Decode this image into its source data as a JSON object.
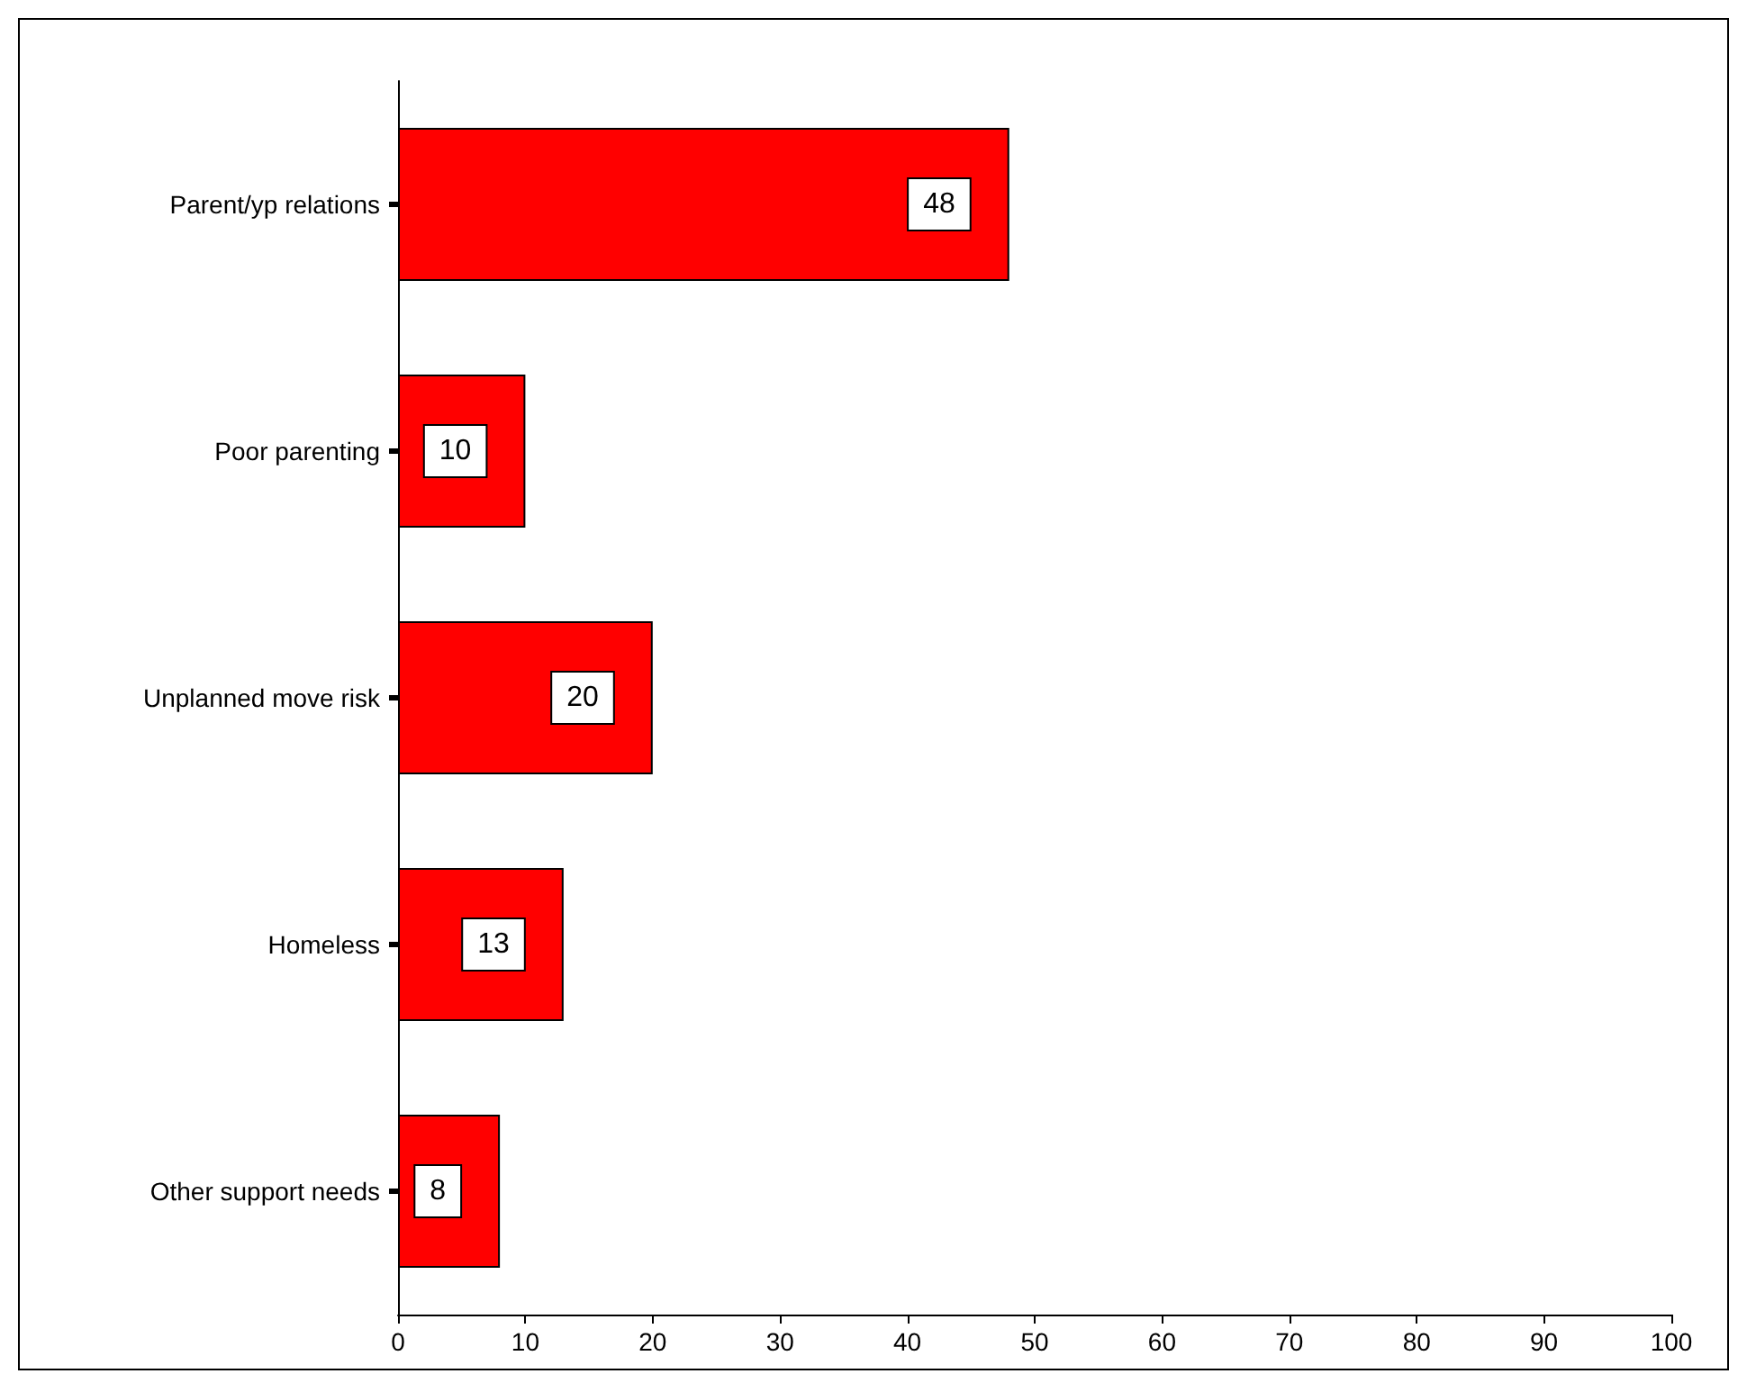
{
  "chart_data": {
    "type": "bar",
    "orientation": "horizontal",
    "categories": [
      "Parent/yp relations",
      "Poor parenting",
      "Unplanned move risk",
      "Homeless",
      "Other support needs"
    ],
    "values": [
      48,
      10,
      20,
      13,
      8
    ],
    "color": "#ff0000",
    "xlim": [
      0,
      100
    ],
    "xticks": [
      0,
      10,
      20,
      30,
      40,
      50,
      60,
      70,
      80,
      90,
      100
    ],
    "data_labels": true
  }
}
